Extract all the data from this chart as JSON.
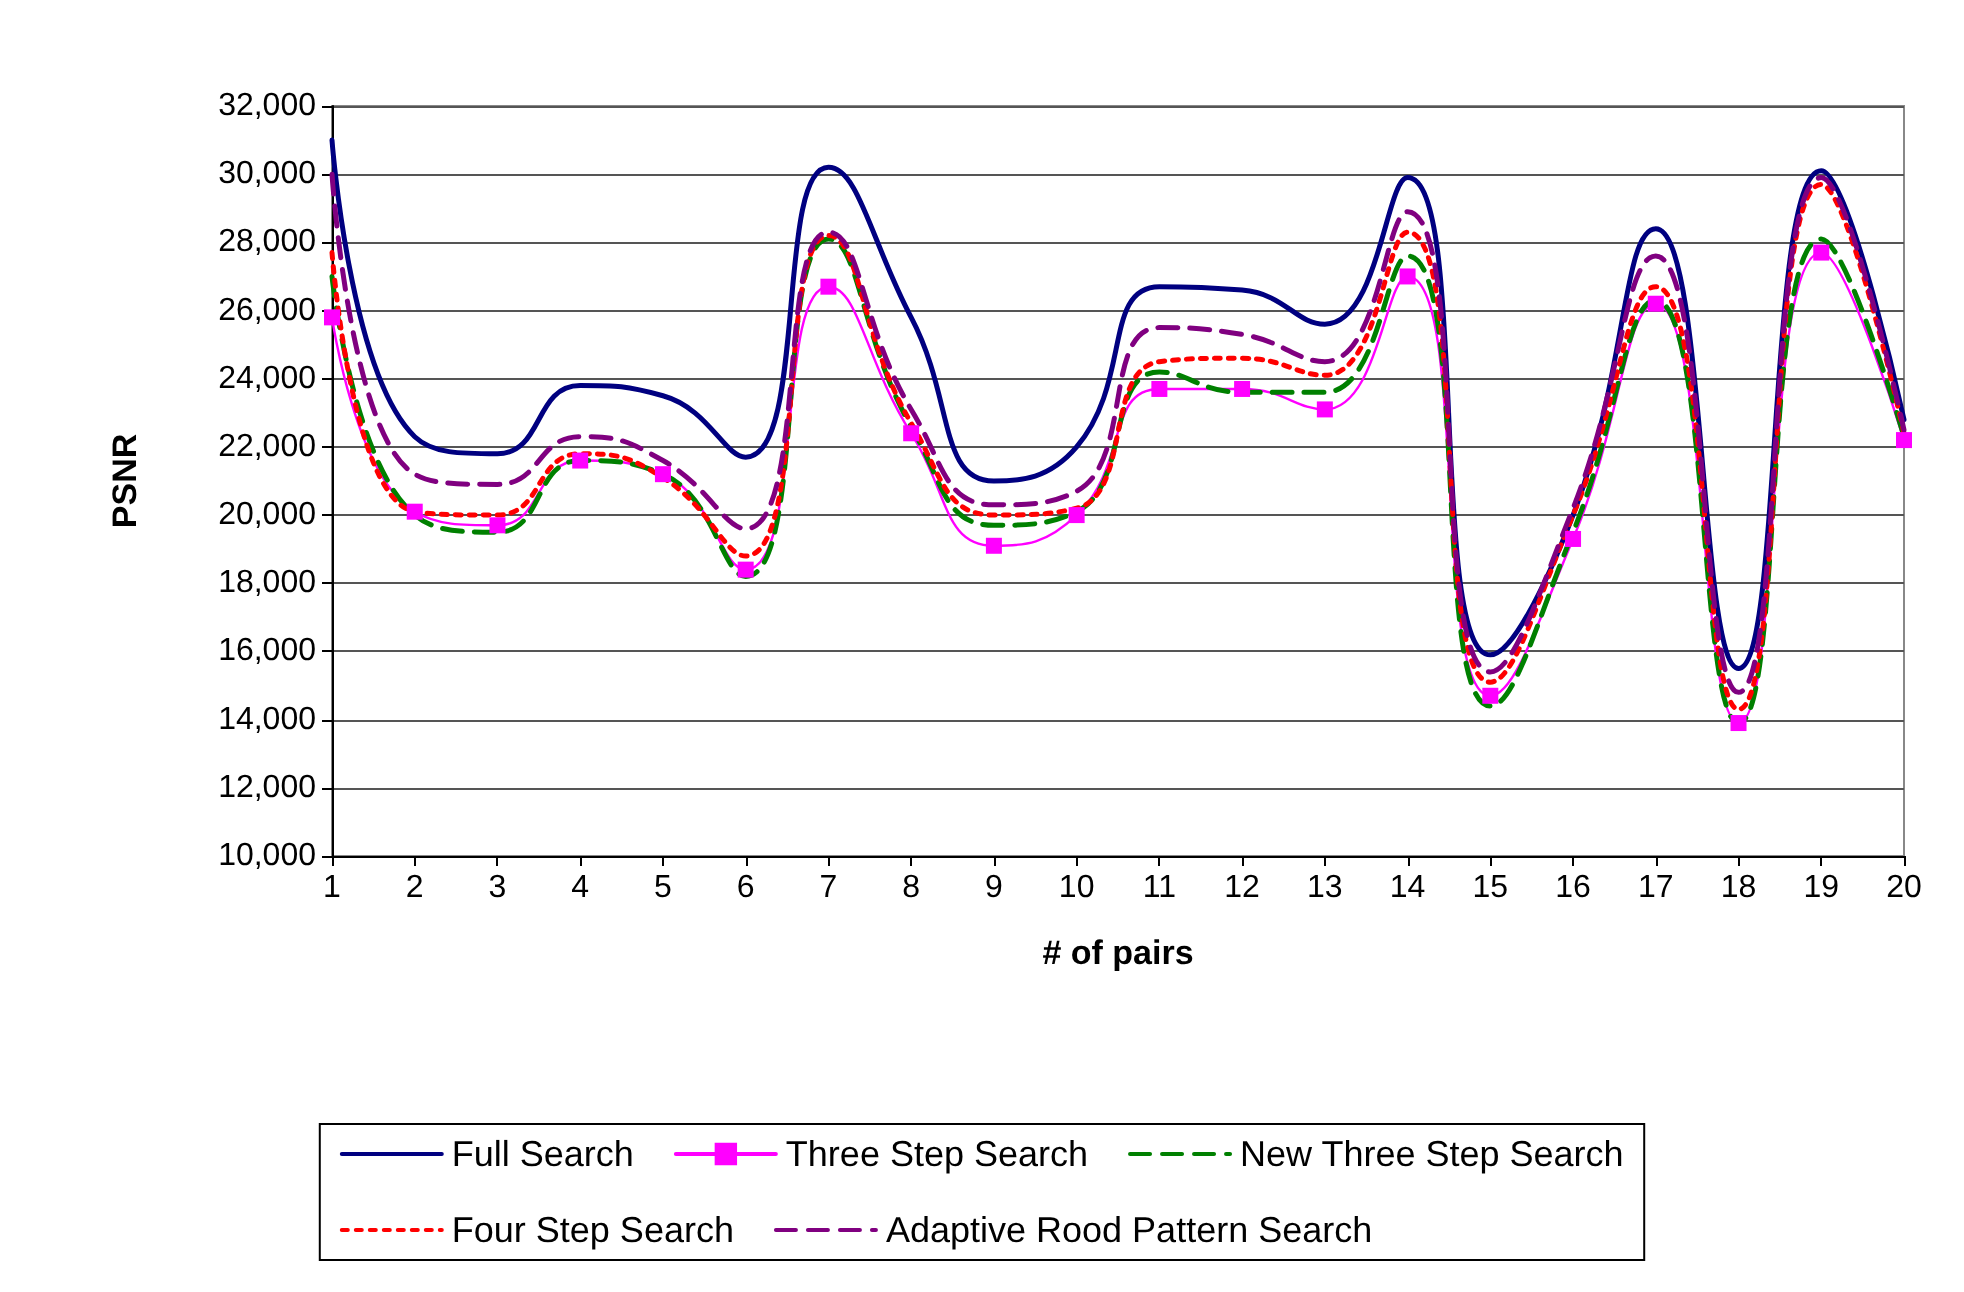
{
  "chart_data": {
    "type": "line",
    "xlabel": "# of pairs",
    "ylabel": "PSNR",
    "x": [
      1,
      2,
      3,
      4,
      5,
      6,
      7,
      8,
      9,
      10,
      11,
      12,
      13,
      14,
      15,
      16,
      17,
      18,
      19,
      20
    ],
    "xlim": [
      1,
      20
    ],
    "xticks": [
      1,
      2,
      3,
      4,
      5,
      6,
      7,
      8,
      9,
      10,
      11,
      12,
      13,
      14,
      15,
      16,
      17,
      18,
      19,
      20
    ],
    "ylim": [
      10000,
      32000
    ],
    "yticks": [
      {
        "value": 10000,
        "label": "10,000"
      },
      {
        "value": 12000,
        "label": "12,000"
      },
      {
        "value": 14000,
        "label": "14,000"
      },
      {
        "value": 16000,
        "label": "16,000"
      },
      {
        "value": 18000,
        "label": "18,000"
      },
      {
        "value": 20000,
        "label": "20,000"
      },
      {
        "value": 22000,
        "label": "22,000"
      },
      {
        "value": 24000,
        "label": "24,000"
      },
      {
        "value": 26000,
        "label": "26,000"
      },
      {
        "value": 28000,
        "label": "28,000"
      },
      {
        "value": 30000,
        "label": "30,000"
      },
      {
        "value": 32000,
        "label": "32,000"
      }
    ],
    "grid": "y",
    "legend": "bottom",
    "marker": "none",
    "line_style": "solid",
    "series": [
      {
        "name": "Full Search",
        "color": "#000080",
        "values": [
          31000,
          22300,
          21800,
          23800,
          23500,
          21700,
          30200,
          25800,
          21000,
          22000,
          26700,
          26600,
          25600,
          29900,
          15900,
          20000,
          28400,
          15500,
          30100,
          22800
        ]
      },
      {
        "name": "Three Step Search",
        "color": "#ff00ff",
        "marker": "square",
        "values": [
          25800,
          20100,
          19700,
          21600,
          21200,
          18400,
          26700,
          22400,
          19100,
          20000,
          23700,
          23700,
          23100,
          27000,
          14700,
          19300,
          26200,
          13900,
          27700,
          22200
        ]
      },
      {
        "name": "New Three Step Search",
        "color": "#008000",
        "line_style": "dashed",
        "values": [
          27000,
          20000,
          19500,
          21600,
          21200,
          18200,
          28100,
          22600,
          19700,
          20100,
          24200,
          23600,
          23600,
          27600,
          14400,
          19500,
          26300,
          13900,
          28100,
          22300
        ]
      },
      {
        "name": "Four Step Search",
        "color": "#ff0000",
        "line_style": "dotted",
        "values": [
          27700,
          20100,
          20000,
          21800,
          21100,
          18800,
          28200,
          22700,
          20000,
          20200,
          24500,
          24600,
          24100,
          28300,
          15100,
          20000,
          26700,
          14300,
          29700,
          22400
        ]
      },
      {
        "name": "Adaptive Rood Pattern Search",
        "color": "#800080",
        "line_style": "dashed",
        "values": [
          30000,
          21200,
          20900,
          22300,
          21600,
          19600,
          28300,
          23100,
          20300,
          20700,
          25500,
          25300,
          24500,
          28900,
          15400,
          20200,
          27600,
          14800,
          29900,
          22500
        ]
      }
    ]
  }
}
